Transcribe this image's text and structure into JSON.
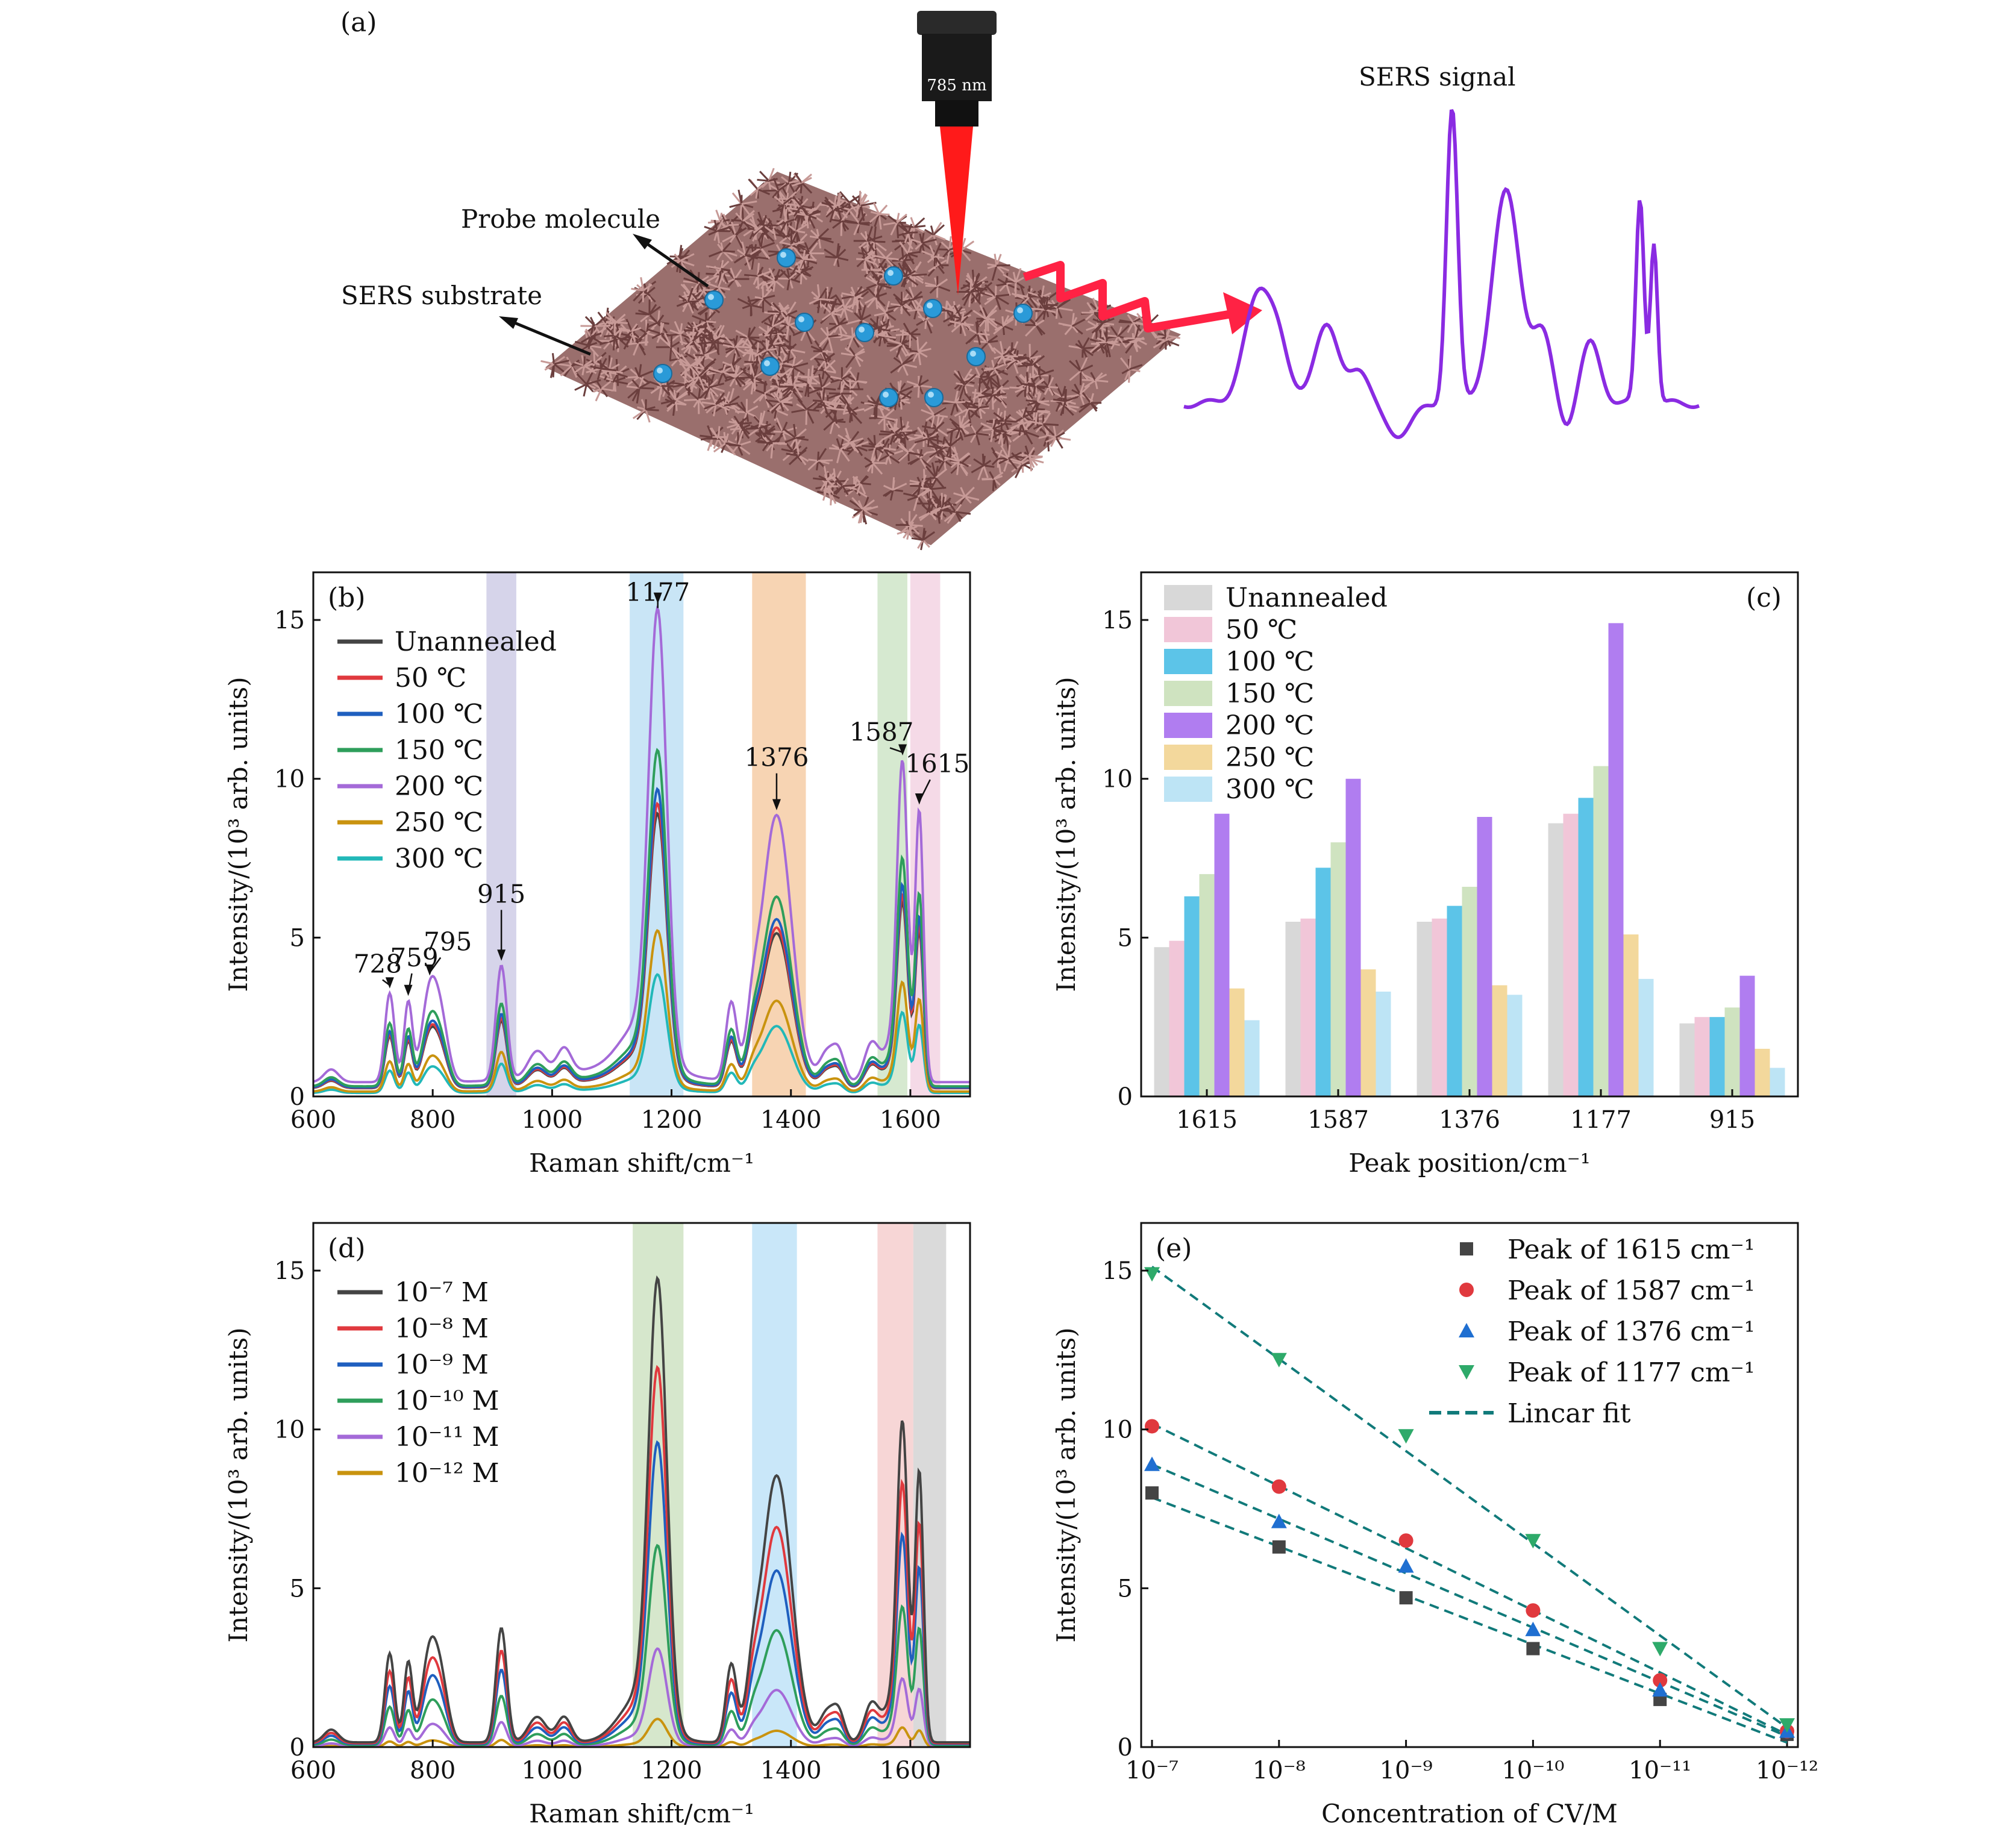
{
  "panel_a": {
    "label": "(a)",
    "laser_label": "785 nm",
    "probe_label": "Probe molecule",
    "substrate_label": "SERS substrate",
    "signal_label": "SERS signal"
  },
  "panel_b": {
    "label": "(b)",
    "peaks": [
      "728",
      "759",
      "795",
      "915",
      "1177",
      "1376",
      "1587",
      "1615"
    ]
  },
  "panel_c": {
    "label": "(c)"
  },
  "panel_d": {
    "label": "(d)"
  },
  "panel_e": {
    "label": "(e)"
  },
  "colors": {
    "unannealed": "#444444",
    "t50": "#e0393e",
    "t100": "#1f5fbf",
    "t150": "#2e9e5b",
    "t200": "#a46ad8",
    "t250": "#c9930f",
    "t300": "#22b8b8",
    "bar_unannealed": "#d8d8d8",
    "bar_50": "#f1c6d8",
    "bar_100": "#5cc4e8",
    "bar_150": "#cfe3c0",
    "bar_200": "#b07df0",
    "bar_250": "#f3d89c",
    "bar_300": "#bde4f5"
  },
  "chart_data": [
    {
      "id": "b",
      "type": "line",
      "xlabel": "Raman shift/cm⁻¹",
      "ylabel": "Intensity/(10³ arb. units)",
      "xlim": [
        600,
        1700
      ],
      "ylim": [
        0,
        16.5
      ],
      "xticks": [
        600,
        800,
        1000,
        1200,
        1400,
        1600
      ],
      "yticks": [
        0,
        5,
        10,
        15
      ],
      "bands": [
        {
          "x0": 890,
          "x1": 940,
          "color": "#cfcde6"
        },
        {
          "x0": 1130,
          "x1": 1220,
          "color": "#bfe1f4"
        },
        {
          "x0": 1335,
          "x1": 1425,
          "color": "#f6cda6"
        },
        {
          "x0": 1545,
          "x1": 1595,
          "color": "#cfe5c8"
        },
        {
          "x0": 1600,
          "x1": 1650,
          "color": "#f3d3e3"
        }
      ],
      "peak_labels": [
        728,
        759,
        795,
        915,
        1177,
        1376,
        1587,
        1615
      ],
      "peak_positions": [
        728,
        759,
        795,
        915,
        1177,
        1376,
        1587,
        1615
      ],
      "series": [
        {
          "name": "Unannealed",
          "scale": 0.58,
          "color": "#444444"
        },
        {
          "name": "50 ℃",
          "scale": 0.6,
          "color": "#e0393e"
        },
        {
          "name": "100 ℃",
          "scale": 0.63,
          "color": "#1f5fbf"
        },
        {
          "name": "150 ℃",
          "scale": 0.71,
          "color": "#2e9e5b"
        },
        {
          "name": "200 ℃",
          "scale": 1.0,
          "color": "#a46ad8"
        },
        {
          "name": "250 ℃",
          "scale": 0.34,
          "color": "#c9930f"
        },
        {
          "name": "300 ℃",
          "scale": 0.25,
          "color": "#22b8b8"
        }
      ]
    },
    {
      "id": "c",
      "type": "bar",
      "xlabel": "Peak position/cm⁻¹",
      "ylabel": "Intensity/(10³ arb. units)",
      "ylim": [
        0,
        16.5
      ],
      "yticks": [
        0,
        5,
        10,
        15
      ],
      "categories": [
        "1615",
        "1587",
        "1376",
        "1177",
        "915"
      ],
      "series": [
        {
          "name": "Unannealed",
          "values": [
            4.7,
            5.5,
            5.5,
            8.6,
            2.3
          ]
        },
        {
          "name": "50 ℃",
          "values": [
            4.9,
            5.6,
            5.6,
            8.9,
            2.5
          ]
        },
        {
          "name": "100 ℃",
          "values": [
            6.3,
            7.2,
            6.0,
            9.4,
            2.5
          ]
        },
        {
          "name": "150 ℃",
          "values": [
            7.0,
            8.0,
            6.6,
            10.4,
            2.8
          ]
        },
        {
          "name": "200 ℃",
          "values": [
            8.9,
            10.0,
            8.8,
            14.9,
            3.8
          ]
        },
        {
          "name": "250 ℃",
          "values": [
            3.4,
            4.0,
            3.5,
            5.1,
            1.5
          ]
        },
        {
          "name": "300 ℃",
          "values": [
            2.4,
            3.3,
            3.2,
            3.7,
            0.9
          ]
        }
      ]
    },
    {
      "id": "d",
      "type": "line",
      "xlabel": "Raman shift/cm⁻¹",
      "ylabel": "Intensity/(10³ arb. units)",
      "xlim": [
        600,
        1700
      ],
      "ylim": [
        0,
        16.5
      ],
      "xticks": [
        600,
        800,
        1000,
        1200,
        1400,
        1600
      ],
      "yticks": [
        0,
        5,
        10,
        15
      ],
      "bands": [
        {
          "x0": 1135,
          "x1": 1220,
          "color": "#cfe3c3"
        },
        {
          "x0": 1335,
          "x1": 1410,
          "color": "#bfe3f8"
        },
        {
          "x0": 1545,
          "x1": 1605,
          "color": "#f6cfcf"
        },
        {
          "x0": 1605,
          "x1": 1660,
          "color": "#d4d4d4"
        }
      ],
      "series": [
        {
          "name": "10⁻⁷ M",
          "scale": 1.0,
          "color": "#444444"
        },
        {
          "name": "10⁻⁸ M",
          "scale": 0.81,
          "color": "#e0393e"
        },
        {
          "name": "10⁻⁹ M",
          "scale": 0.65,
          "color": "#1f5fbf"
        },
        {
          "name": "10⁻¹⁰ M",
          "scale": 0.43,
          "color": "#2e9e5b"
        },
        {
          "name": "10⁻¹¹ M",
          "scale": 0.21,
          "color": "#a46ad8"
        },
        {
          "name": "10⁻¹² M",
          "scale": 0.06,
          "color": "#c9930f"
        }
      ]
    },
    {
      "id": "e",
      "type": "scatter",
      "xlabel": "Concentration of CV/M",
      "ylabel": "Intensity/(10³ arb. units)",
      "xticks_exp": [
        -7,
        -8,
        -9,
        -10,
        -11,
        -12
      ],
      "ylim": [
        0,
        16.5
      ],
      "yticks": [
        0,
        5,
        10,
        15
      ],
      "series": [
        {
          "name": "Peak of 1615 cm⁻¹",
          "marker": "square",
          "color": "#444444",
          "x_exp": [
            -7,
            -8,
            -9,
            -10,
            -11,
            -12
          ],
          "values": [
            8.0,
            6.3,
            4.7,
            3.1,
            1.5,
            0.4
          ]
        },
        {
          "name": "Peak of 1587 cm⁻¹",
          "marker": "circle",
          "color": "#e0393e",
          "x_exp": [
            -7,
            -8,
            -9,
            -10,
            -11,
            -12
          ],
          "values": [
            10.1,
            8.2,
            6.5,
            4.3,
            2.1,
            0.5
          ]
        },
        {
          "name": "Peak of 1376 cm⁻¹",
          "marker": "triangle-up",
          "color": "#1f6fd1",
          "x_exp": [
            -7,
            -8,
            -9,
            -10,
            -11,
            -12
          ],
          "values": [
            8.9,
            7.1,
            5.7,
            3.7,
            1.8,
            0.5
          ]
        },
        {
          "name": "Peak of 1177 cm⁻¹",
          "marker": "triangle-down",
          "color": "#2eaa6a",
          "x_exp": [
            -7,
            -8,
            -9,
            -10,
            -11,
            -12
          ],
          "values": [
            14.9,
            12.2,
            9.8,
            6.5,
            3.1,
            0.7
          ]
        }
      ],
      "fit_label": "Lincar fit"
    }
  ]
}
